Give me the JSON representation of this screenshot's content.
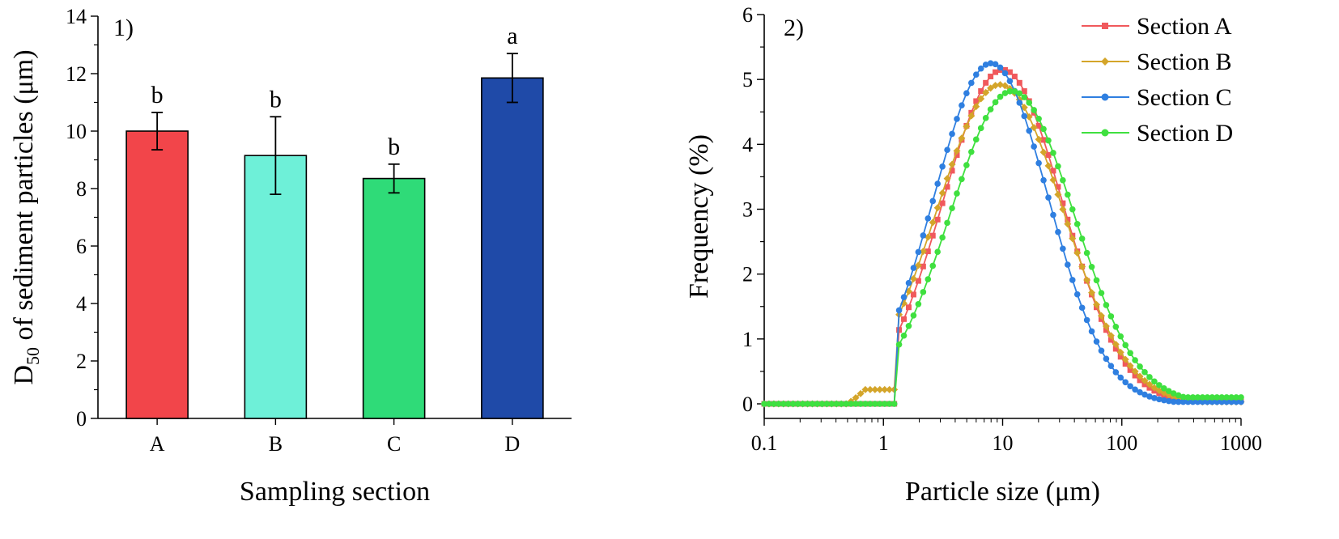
{
  "chart_data": [
    {
      "type": "bar",
      "panel_label": "1)",
      "xlabel": "Sampling section",
      "ylabel_main": "D",
      "ylabel_sub": "50",
      "ylabel_rest": " of sediment particles (μm)",
      "ylim": [
        0,
        14
      ],
      "yticks": [
        0,
        2,
        4,
        6,
        8,
        10,
        12,
        14
      ],
      "categories": [
        "A",
        "B",
        "C",
        "D"
      ],
      "values": [
        10.0,
        9.15,
        8.35,
        11.85
      ],
      "errors": [
        0.65,
        1.35,
        0.5,
        0.85
      ],
      "letters": [
        "b",
        "b",
        "b",
        "a"
      ],
      "colors": [
        "#f2454a",
        "#6ef0d8",
        "#2fdb78",
        "#1f4aa8"
      ]
    },
    {
      "type": "line",
      "panel_label": "2)",
      "xlabel": "Particle size (μm)",
      "ylabel": "Frequency (%)",
      "xscale": "log",
      "xlim": [
        0.1,
        1000
      ],
      "ylim": [
        0,
        6
      ],
      "xticks": [
        "0.1",
        "1",
        "10",
        "100",
        "1000"
      ],
      "yticks": [
        0,
        1,
        2,
        3,
        4,
        5,
        6
      ],
      "legend_position": "top-right",
      "series": [
        {
          "name": "Section A",
          "color": "#f0595c",
          "marker": "square",
          "peak_size": 10,
          "peak_value": 5.15,
          "width": 0.5,
          "tail": 0.05,
          "bump": 0
        },
        {
          "name": "Section B",
          "color": "#d4a52a",
          "marker": "diamond",
          "peak_size": 9.5,
          "peak_value": 4.92,
          "width": 0.53,
          "tail": 0.03,
          "bump": 0.22
        },
        {
          "name": "Section C",
          "color": "#2f7fe0",
          "marker": "circle",
          "peak_size": 8,
          "peak_value": 5.25,
          "width": 0.48,
          "tail": 0.03,
          "bump": 0
        },
        {
          "name": "Section D",
          "color": "#3fe03f",
          "marker": "circle",
          "peak_size": 12,
          "peak_value": 4.82,
          "width": 0.52,
          "tail": 0.1,
          "bump": 0
        }
      ]
    }
  ]
}
